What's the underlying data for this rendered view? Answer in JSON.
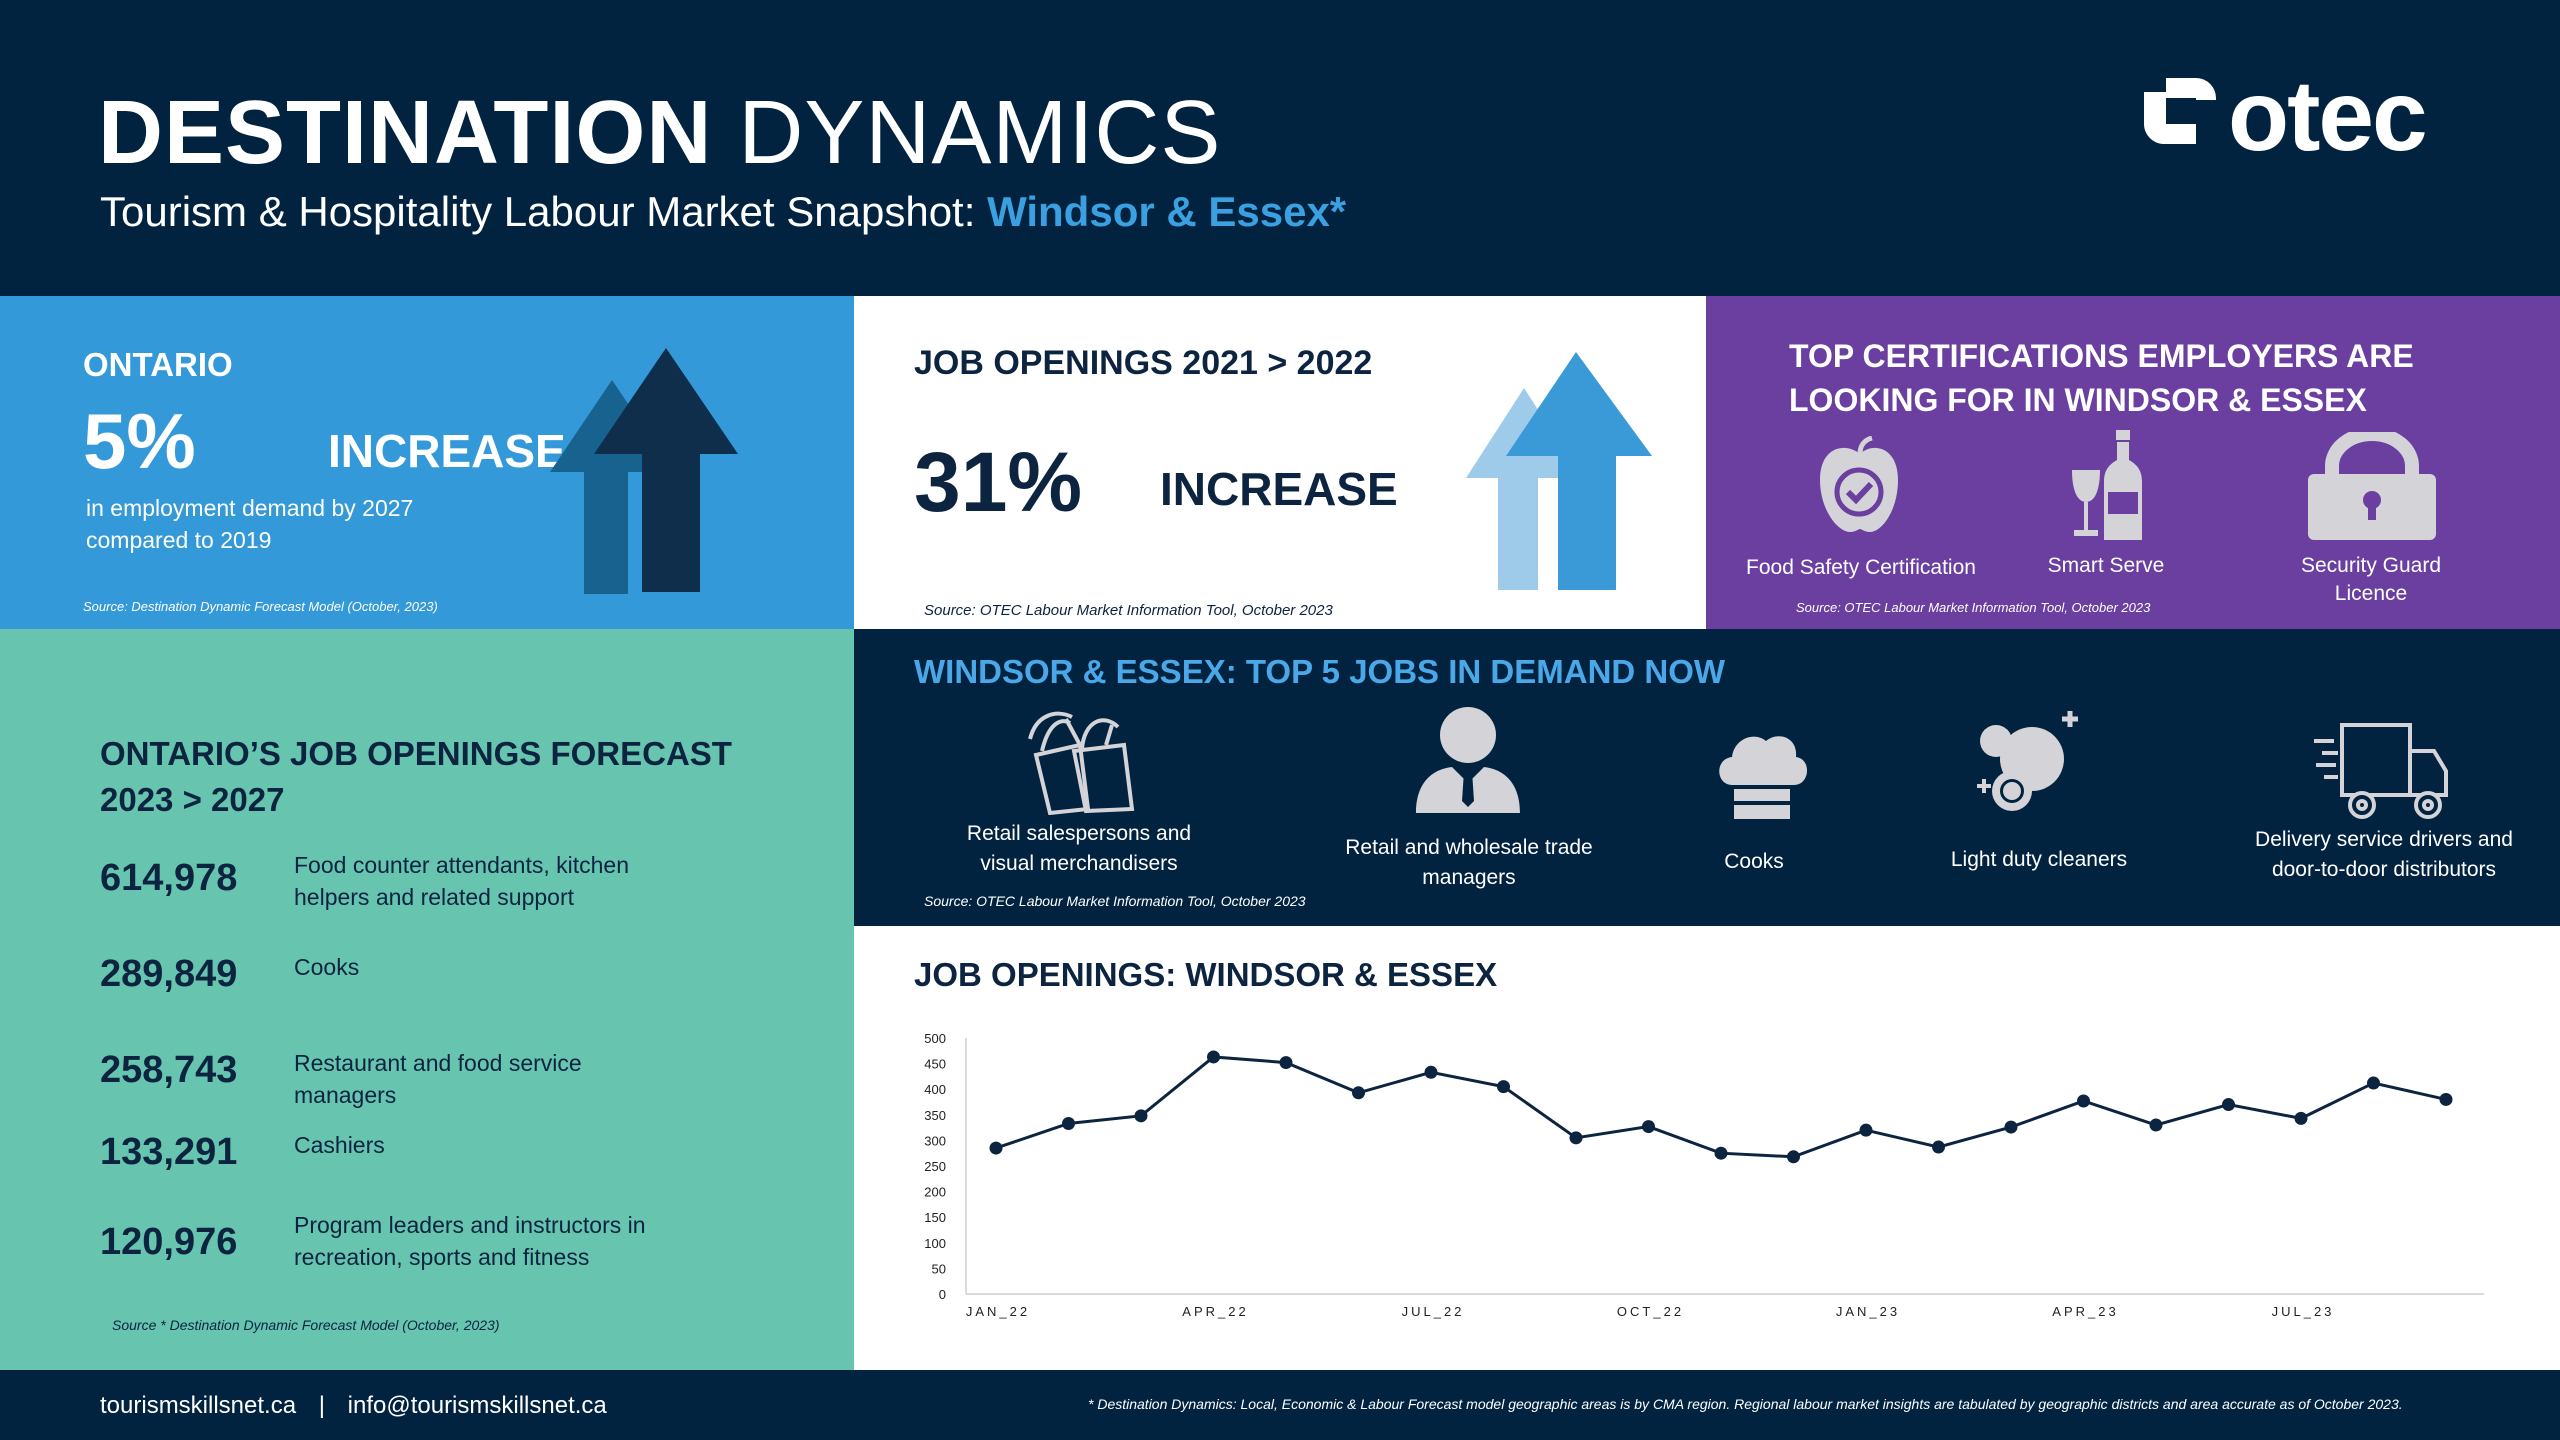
{
  "header": {
    "title_bold": "DESTINATION",
    "title_rest": "DYNAMICS",
    "subtitle_prefix": "Tourism & Hospitality Labour Market Snapshot:",
    "subtitle_region": "Windsor & Essex*",
    "logo_text": "otec"
  },
  "ontario": {
    "label": "ONTARIO",
    "percent": "5%",
    "increase": "INCREASE",
    "description_line1": "in employment demand by 2027",
    "description_line2": "compared to 2019",
    "source": "Source: Destination Dynamic Forecast Model (October, 2023)"
  },
  "job_openings": {
    "title": "JOB OPENINGS 2021 > 2022",
    "percent": "31%",
    "increase": "INCREASE",
    "source": "Source: OTEC Labour Market Information Tool, October 2023"
  },
  "certifications": {
    "title_line1": "TOP CERTIFICATIONS EMPLOYERS ARE",
    "title_line2": "LOOKING FOR IN WINDSOR & ESSEX",
    "items": [
      {
        "label": "Food Safety Certification",
        "icon": "apple-check-icon"
      },
      {
        "label": "Smart Serve",
        "icon": "wine-bottle-icon"
      },
      {
        "label_line1": "Security Guard",
        "label_line2": "Licence",
        "icon": "padlock-icon"
      }
    ],
    "source": "Source: OTEC Labour Market Information Tool, October 2023"
  },
  "forecast": {
    "title_line1": "ONTARIO’S JOB OPENINGS FORECAST",
    "title_line2": "2023 > 2027",
    "rows": [
      {
        "value": "614,978",
        "line1": "Food counter attendants, kitchen",
        "line2": "helpers and related support"
      },
      {
        "value": "289,849",
        "line1": "Cooks",
        "line2": ""
      },
      {
        "value": "258,743",
        "line1": "Restaurant and food service",
        "line2": "managers"
      },
      {
        "value": "133,291",
        "line1": "Cashiers",
        "line2": ""
      },
      {
        "value": "120,976",
        "line1": "Program leaders and instructors in",
        "line2": "recreation, sports and fitness"
      }
    ],
    "source": "Source * Destination Dynamic Forecast Model (October, 2023)"
  },
  "top5": {
    "title": "WINDSOR & ESSEX: TOP 5 JOBS IN DEMAND NOW",
    "jobs": [
      {
        "line1": "Retail salespersons and",
        "line2": "visual merchandisers",
        "icon": "shopping-bags-icon"
      },
      {
        "line1": "Retail and wholesale trade",
        "line2": "managers",
        "icon": "businessman-icon"
      },
      {
        "line1": "Cooks",
        "line2": "",
        "icon": "chef-hat-icon"
      },
      {
        "line1": "Light duty cleaners",
        "line2": "",
        "icon": "bubbles-icon"
      },
      {
        "line1": "Delivery service drivers and",
        "line2": "door-to-door distributors",
        "icon": "delivery-truck-icon"
      }
    ],
    "source": "Source: OTEC Labour Market Information Tool, October 2023"
  },
  "chart_data": {
    "type": "line",
    "title": "JOB OPENINGS: WINDSOR & ESSEX",
    "x": [
      "JAN_22",
      "FEB_22",
      "MAR_22",
      "APR_22",
      "MAY_22",
      "JUN_22",
      "JUL_22",
      "AUG_22",
      "SEP_22",
      "OCT_22",
      "NOV_22",
      "DEC_22",
      "JAN_23",
      "FEB_23",
      "MAR_23",
      "APR_23",
      "MAY_23",
      "JUN_23",
      "JUL_23",
      "AUG_23",
      "SEP_23"
    ],
    "x_tick_labels": [
      "JAN_22",
      "APR_22",
      "JUL_22",
      "OCT_22",
      "JAN_23",
      "APR_23",
      "JUL_23"
    ],
    "values": [
      285,
      333,
      348,
      463,
      452,
      393,
      433,
      405,
      305,
      327,
      275,
      268,
      320,
      287,
      326,
      377,
      330,
      370,
      343,
      412,
      380
    ],
    "ylim": [
      0,
      500
    ],
    "yticks": [
      0,
      50,
      100,
      150,
      200,
      250,
      300,
      350,
      400,
      450,
      500
    ],
    "line_color": "#0d2440"
  },
  "footer": {
    "website": "tourismskillsnet.ca",
    "separator": "|",
    "email": "info@tourismskillsnet.ca",
    "note": "* Destination Dynamics: Local, Economic & Labour Forecast model geographic areas is by CMA region. Regional labour market insights are tabulated by geographic districts and area accurate as of October 2023."
  }
}
